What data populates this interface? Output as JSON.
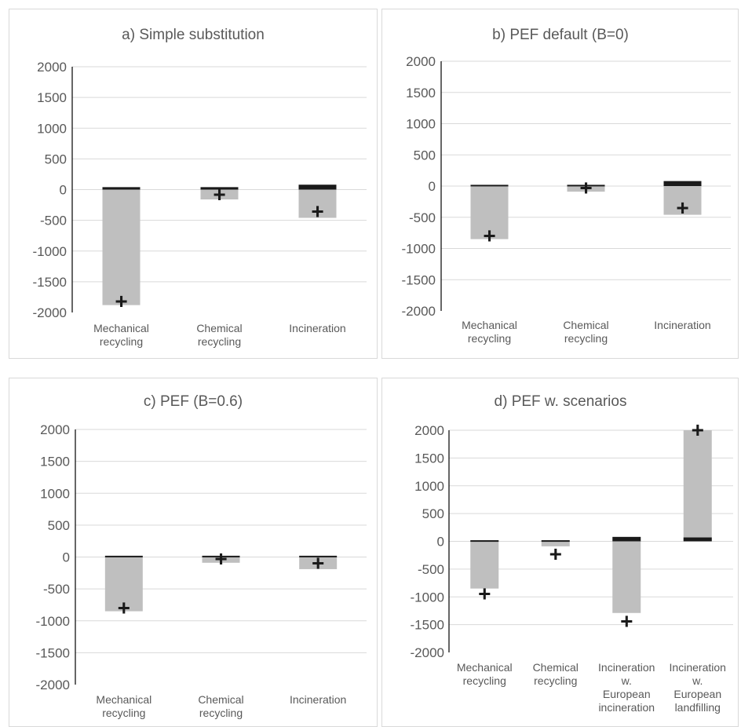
{
  "colors": {
    "negative_bar": "#bfbfbf",
    "positive_bar": "#1a1a1a",
    "net_marker": "#1a1a1a",
    "gridline": "#d9d9d9",
    "axis": "#000000",
    "text": "#595959"
  },
  "net_marker_symbol": "+",
  "chart_data": [
    {
      "type": "bar",
      "title": "a) Simple substitution",
      "ylim": [
        -2000,
        2000
      ],
      "yticks": [
        "2000",
        "1500",
        "1000",
        "500",
        "0",
        "-500",
        "-1000",
        "-1500",
        "-2000"
      ],
      "grid": true,
      "categories": [
        [
          "Mechanical",
          "recycling"
        ],
        [
          "Chemical",
          "recycling"
        ],
        [
          "Incineration"
        ]
      ],
      "series": [
        {
          "values": [
            -1880,
            -160,
            -460
          ]
        },
        {
          "values": [
            40,
            40,
            80
          ]
        }
      ],
      "net": [
        -1820,
        -80,
        -360
      ]
    },
    {
      "type": "bar",
      "title": "b) PEF default (B=0)",
      "ylim": [
        -2000,
        2000
      ],
      "yticks": [
        "2000",
        "1500",
        "1000",
        "500",
        "0",
        "-500",
        "-1000",
        "-1500",
        "-2000"
      ],
      "grid": true,
      "categories": [
        [
          "Mechanical",
          "recycling"
        ],
        [
          "Chemical",
          "recycling"
        ],
        [
          "Incineration"
        ]
      ],
      "series": [
        {
          "values": [
            -850,
            -90,
            -460
          ]
        },
        {
          "values": [
            20,
            20,
            80
          ]
        }
      ],
      "net": [
        -800,
        -30,
        -350
      ]
    },
    {
      "type": "bar",
      "title": "c) PEF (B=0.6)",
      "ylim": [
        -2000,
        2000
      ],
      "yticks": [
        "2000",
        "1500",
        "1000",
        "500",
        "0",
        "-500",
        "-1000",
        "-1500",
        "-2000"
      ],
      "grid": true,
      "categories": [
        [
          "Mechanical",
          "recycling"
        ],
        [
          "Chemical",
          "recycling"
        ],
        [
          "Incineration"
        ]
      ],
      "series": [
        {
          "values": [
            -850,
            -90,
            -190
          ]
        },
        {
          "values": [
            20,
            20,
            20
          ]
        }
      ],
      "net": [
        -800,
        -30,
        -100
      ]
    },
    {
      "type": "bar",
      "title": "d) PEF w. scenarios",
      "ylim": [
        -2000,
        2000
      ],
      "yticks": [
        "2000",
        "1500",
        "1000",
        "500",
        "0",
        "-500",
        "-1000",
        "-1500",
        "-2000"
      ],
      "grid": true,
      "categories": [
        [
          "Mechanical",
          "recycling"
        ],
        [
          "Chemical",
          "recycling"
        ],
        [
          "Incineration",
          "w.",
          "European",
          "incineration"
        ],
        [
          "Incineration",
          "w.",
          "European",
          "landfilling"
        ]
      ],
      "series": [
        {
          "values": [
            -850,
            -90,
            -1290,
            2000
          ]
        },
        {
          "values": [
            20,
            20,
            80,
            70
          ]
        }
      ],
      "net": [
        -950,
        -230,
        -1440,
        2000
      ]
    }
  ]
}
